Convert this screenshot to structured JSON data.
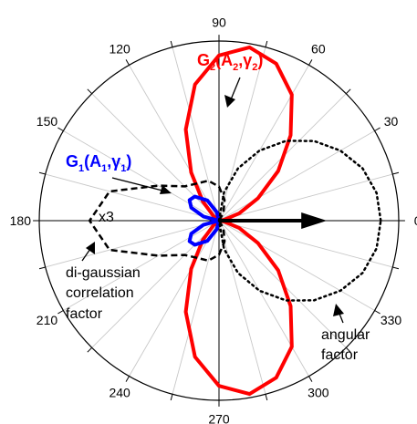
{
  "chart_data": {
    "type": "polar",
    "angle_ticks": [
      "0",
      "30",
      "60",
      "90",
      "120",
      "150",
      "180",
      "210",
      "240",
      "270",
      "300",
      "330"
    ],
    "angular_grid_step_deg": 15,
    "grid": true,
    "series": [
      {
        "name": "G2(A2,γ2)",
        "color": "#ff0000",
        "style": "solid",
        "points": [
          [
            0,
            0
          ],
          [
            10,
            0.03
          ],
          [
            20,
            0.12
          ],
          [
            30,
            0.25
          ],
          [
            40,
            0.43
          ],
          [
            50,
            0.62
          ],
          [
            60,
            0.81
          ],
          [
            70,
            0.93
          ],
          [
            80,
            0.98
          ],
          [
            90,
            0.92
          ],
          [
            100,
            0.77
          ],
          [
            110,
            0.54
          ],
          [
            120,
            0.31
          ],
          [
            130,
            0.14
          ],
          [
            140,
            0.04
          ],
          [
            150,
            0
          ],
          [
            180,
            0
          ]
        ]
      },
      {
        "name": "G1(A1,γ1)",
        "color": "#0000ff",
        "style": "solid",
        "points": [
          [
            90,
            0
          ],
          [
            105,
            0.05
          ],
          [
            120,
            0.13
          ],
          [
            135,
            0.19
          ],
          [
            145,
            0.2
          ],
          [
            155,
            0.17
          ],
          [
            165,
            0.09
          ],
          [
            180,
            0
          ]
        ]
      },
      {
        "name": "di-gaussian correlation factor",
        "color": "#000000",
        "style": "dashed",
        "multiplier_label": "x3",
        "points": [
          [
            50,
            0
          ],
          [
            60,
            0.05
          ],
          [
            75,
            0.12
          ],
          [
            90,
            0.19
          ],
          [
            105,
            0.23
          ],
          [
            120,
            0.24
          ],
          [
            135,
            0.27
          ],
          [
            150,
            0.39
          ],
          [
            165,
            0.63
          ],
          [
            180,
            0.72
          ]
        ]
      },
      {
        "name": "angular factor",
        "color": "#000000",
        "style": "dotted",
        "points": [
          [
            0,
            0.9
          ],
          [
            10,
            0.89
          ],
          [
            20,
            0.85
          ],
          [
            30,
            0.78
          ],
          [
            40,
            0.69
          ],
          [
            50,
            0.58
          ],
          [
            60,
            0.45
          ],
          [
            70,
            0.31
          ],
          [
            80,
            0.16
          ],
          [
            90,
            0
          ]
        ]
      }
    ],
    "mirror_about_0deg": true,
    "arrow": {
      "angle": 0,
      "length": 0.6
    }
  },
  "labels": {
    "g2": {
      "main": "G",
      "sub": "2",
      "open": "(A",
      "sub2": "2",
      "comma": ",γ",
      "sub3": "2",
      "close": ")"
    },
    "g1": {
      "main": "G",
      "sub": "1",
      "open": "(A",
      "sub2": "1",
      "comma": ",γ",
      "sub3": "1",
      "close": ")"
    },
    "x3": "x3",
    "digaussian_1": "di-gaussian",
    "digaussian_2": "correlation",
    "digaussian_3": "factor",
    "angular_1": "angular",
    "angular_2": "factor"
  }
}
